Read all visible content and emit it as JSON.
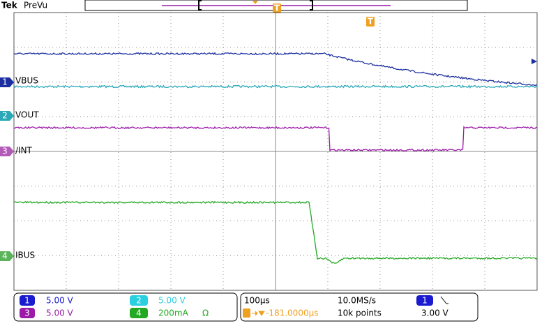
{
  "header": {
    "brand": "Tek",
    "mode": "PreVu"
  },
  "trigger_marker": "T",
  "channels": [
    {
      "number": "1",
      "label": "VBUS",
      "scale": "5.00 V"
    },
    {
      "number": "2",
      "label": "VOUT",
      "scale": "5.00 V"
    },
    {
      "number": "3",
      "label": "/INT",
      "scale": "5.00 V"
    },
    {
      "number": "4",
      "label": "IBUS",
      "scale": "200mA",
      "unit_symbol": "Ω"
    }
  ],
  "horizontal": {
    "scale": "100µs",
    "position": "-181.0000µs",
    "sample_rate": "10.0MS/s",
    "record_length": "10k points"
  },
  "trigger": {
    "source": "1",
    "level": "3.00 V"
  }
}
